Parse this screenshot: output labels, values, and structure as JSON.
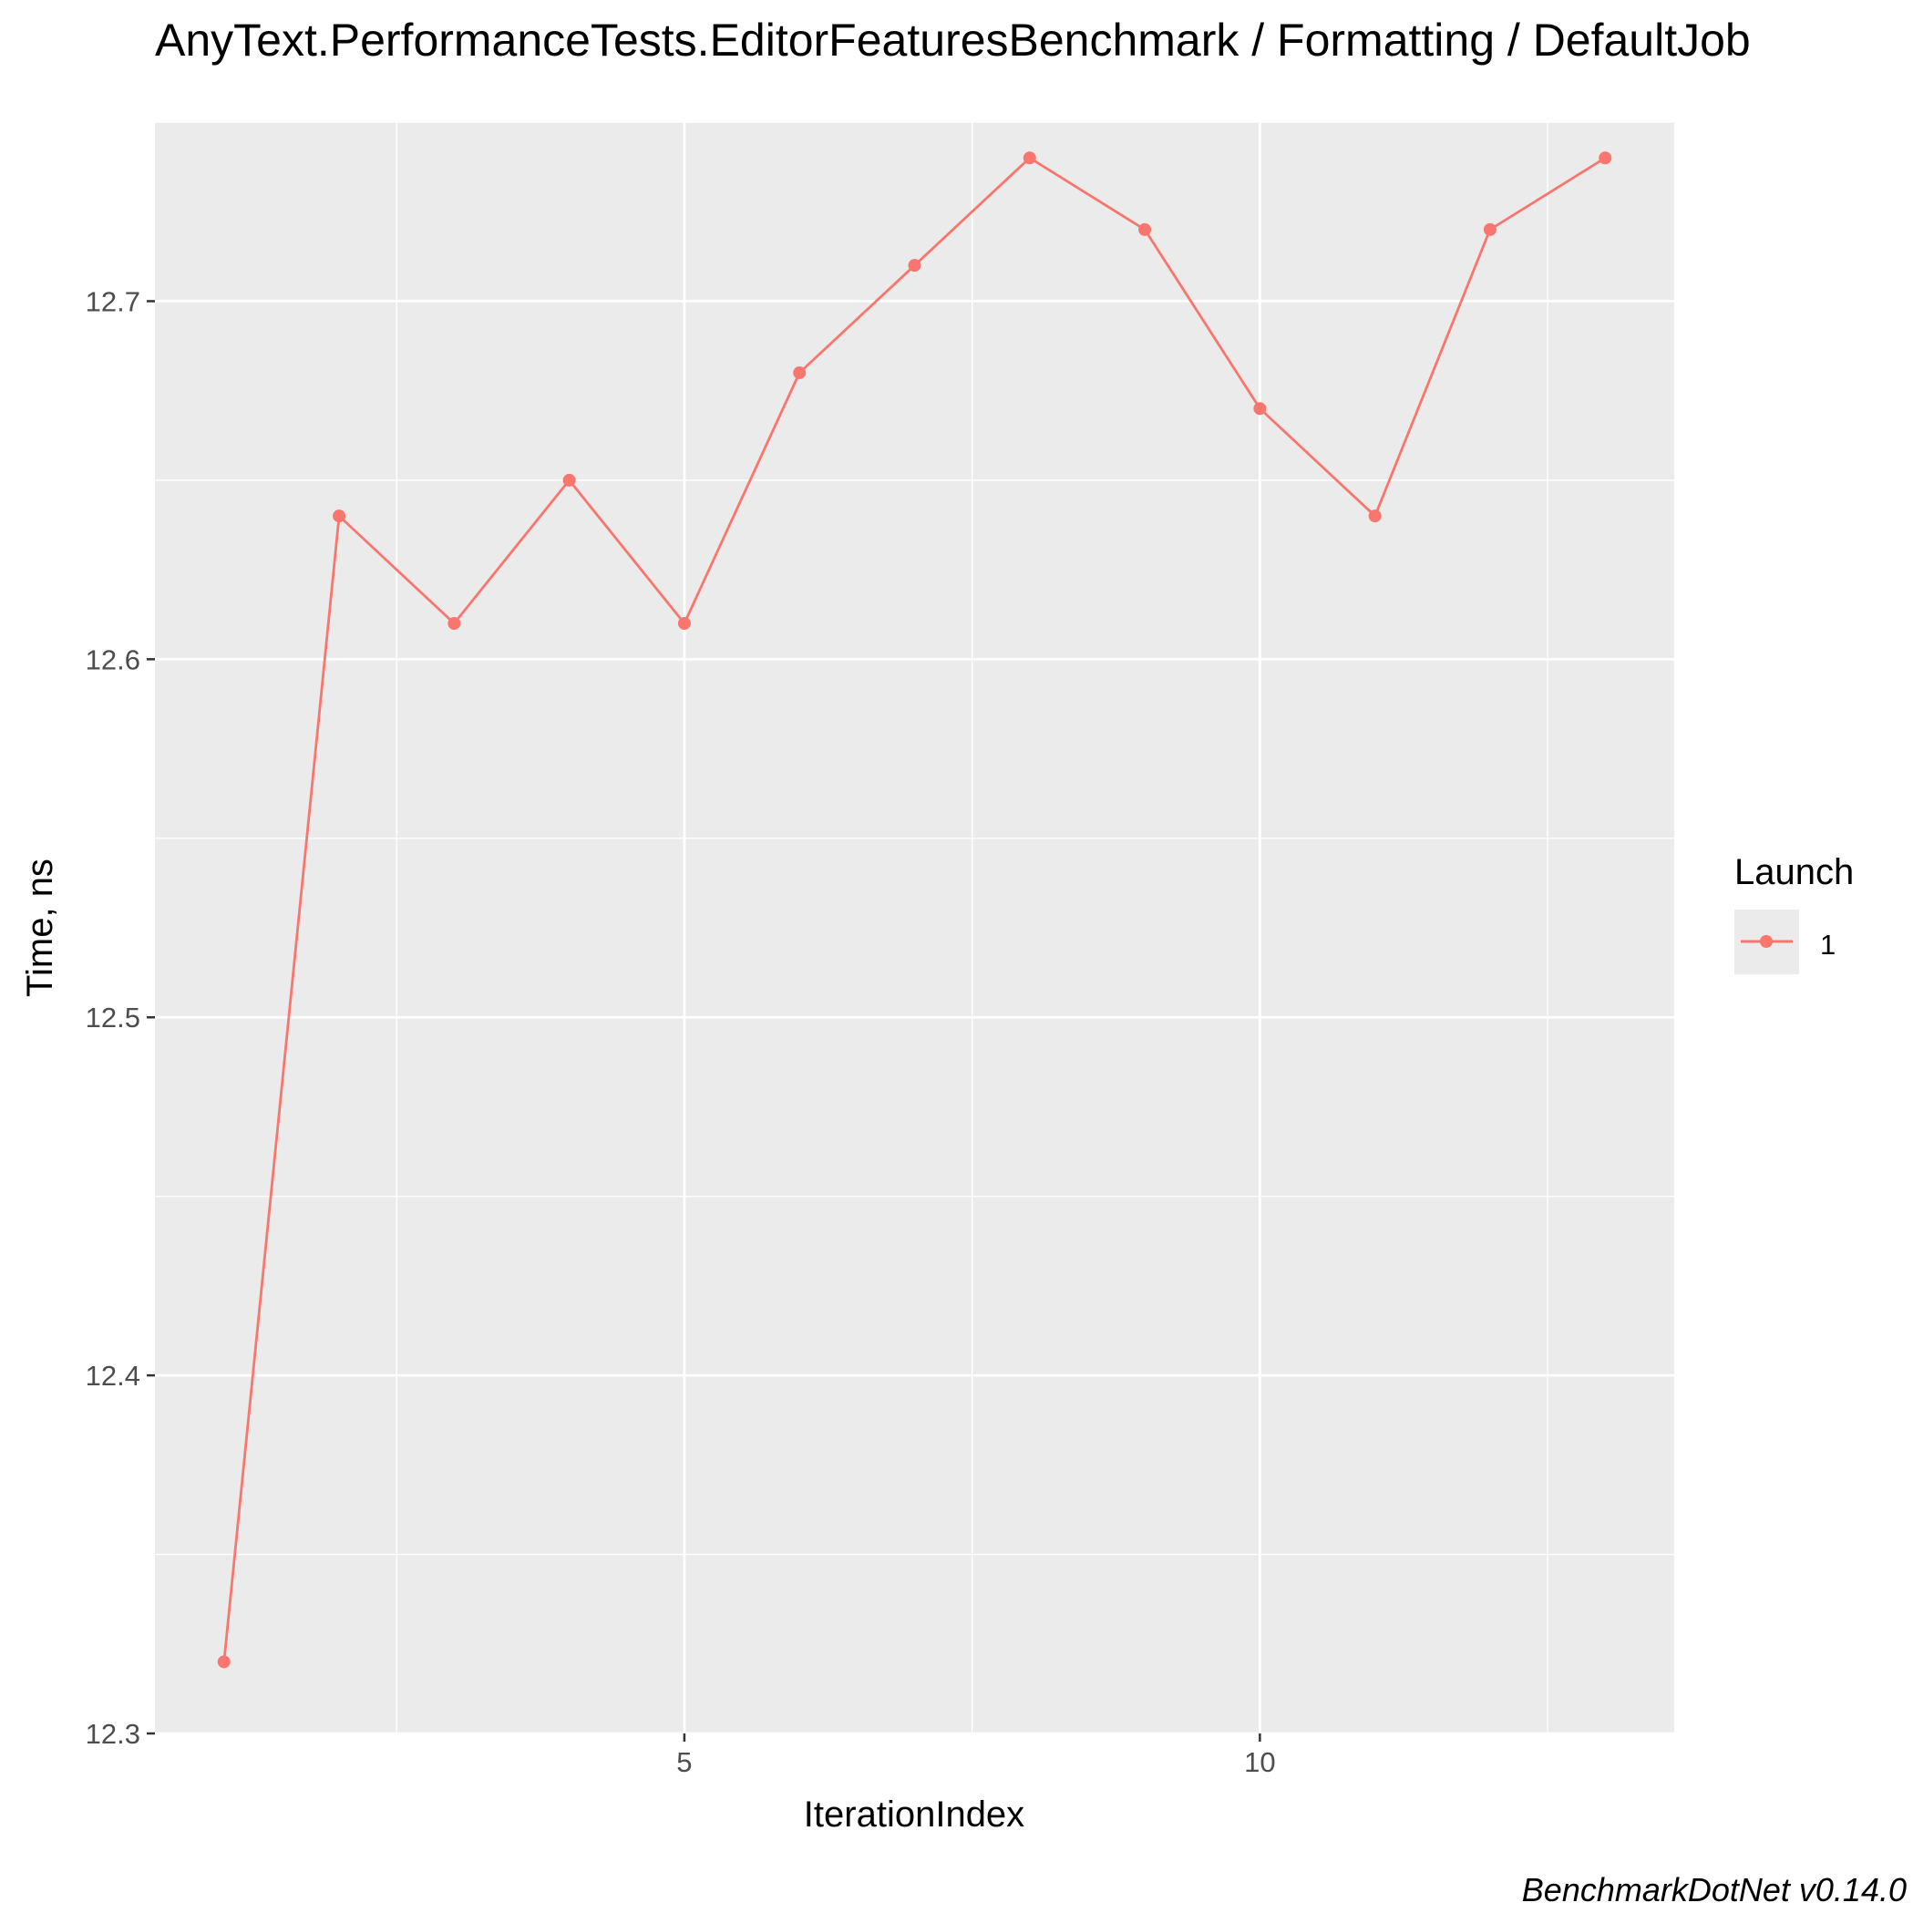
{
  "chart_data": {
    "type": "line",
    "title": "AnyText.PerformanceTests.EditorFeaturesBenchmark / Formatting / DefaultJob",
    "xlabel": "IterationIndex",
    "ylabel": "Time, ns",
    "caption": "BenchmarkDotNet v0.14.0",
    "x": [
      1,
      2,
      3,
      4,
      5,
      6,
      7,
      8,
      9,
      10,
      11,
      12,
      13
    ],
    "series": [
      {
        "name": "1",
        "values": [
          12.32,
          12.64,
          12.61,
          12.65,
          12.61,
          12.68,
          12.71,
          12.74,
          12.72,
          12.67,
          12.64,
          12.72,
          12.74
        ]
      }
    ],
    "xlim": [
      0.4,
      13.6
    ],
    "ylim": [
      12.3,
      12.75
    ],
    "x_ticks": [
      5,
      10
    ],
    "x_tick_labels": [
      "5",
      "10"
    ],
    "x_minor_ticks": [
      2.5,
      7.5,
      12.5
    ],
    "y_ticks": [
      12.3,
      12.4,
      12.5,
      12.6,
      12.7
    ],
    "y_tick_labels": [
      "12.3",
      "12.4",
      "12.5",
      "12.6",
      "12.7"
    ],
    "y_minor_ticks": [
      12.35,
      12.45,
      12.55,
      12.65,
      12.75
    ],
    "grid": true,
    "legend": {
      "title": "Launch",
      "position": "right",
      "entries": [
        "1"
      ]
    },
    "colors": {
      "series": "#f8766d",
      "panel": "#ebebeb",
      "grid": "#ffffff"
    }
  }
}
